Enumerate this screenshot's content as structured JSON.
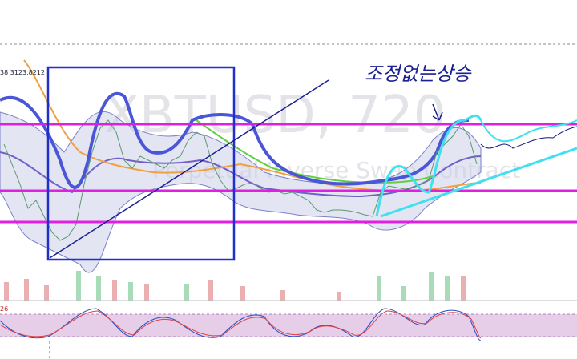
{
  "watermark": {
    "symbol": "XBTUSD, 720",
    "description": "Perpetual Inverse Swap Contract"
  },
  "legend": {
    "value_text": "38 3123.8212"
  },
  "stochastic": {
    "label": "26"
  },
  "annotation": {
    "text": "조정없는상승"
  }
}
